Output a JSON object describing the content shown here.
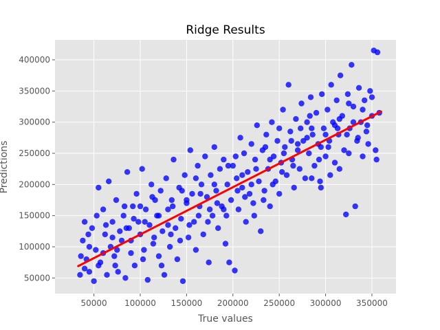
{
  "chart_data": {
    "type": "scatter",
    "title": "Ridge Results",
    "xlabel": "True values",
    "ylabel": "Predictions",
    "xlim": [
      8000,
      376000
    ],
    "ylim": [
      25000,
      432000
    ],
    "xticks": [
      50000,
      100000,
      150000,
      200000,
      250000,
      300000,
      350000
    ],
    "yticks": [
      50000,
      100000,
      150000,
      200000,
      250000,
      300000,
      350000,
      400000
    ],
    "grid": true,
    "background_color": "#e5e5e5",
    "grid_color": "#ffffff",
    "point_color": "#0000ff",
    "line_color": "#ff0000",
    "fit_line": {
      "x": [
        33000,
        360000
      ],
      "y": [
        69000,
        317000
      ]
    },
    "points": [
      [
        35000,
        55000
      ],
      [
        38000,
        110000
      ],
      [
        40000,
        140000
      ],
      [
        42000,
        80000
      ],
      [
        45000,
        60000
      ],
      [
        48000,
        130000
      ],
      [
        50000,
        45000
      ],
      [
        52000,
        95000
      ],
      [
        55000,
        195000
      ],
      [
        57000,
        75000
      ],
      [
        60000,
        160000
      ],
      [
        62000,
        120000
      ],
      [
        64000,
        55000
      ],
      [
        66000,
        205000
      ],
      [
        68000,
        100000
      ],
      [
        70000,
        140000
      ],
      [
        72000,
        85000
      ],
      [
        74000,
        175000
      ],
      [
        76000,
        60000
      ],
      [
        78000,
        125000
      ],
      [
        80000,
        110000
      ],
      [
        82000,
        150000
      ],
      [
        84000,
        50000
      ],
      [
        86000,
        220000
      ],
      [
        88000,
        130000
      ],
      [
        90000,
        90000
      ],
      [
        92000,
        165000
      ],
      [
        94000,
        70000
      ],
      [
        96000,
        185000
      ],
      [
        98000,
        140000
      ],
      [
        100000,
        120000
      ],
      [
        102000,
        225000
      ],
      [
        104000,
        95000
      ],
      [
        106000,
        160000
      ],
      [
        108000,
        47000
      ],
      [
        110000,
        135000
      ],
      [
        112000,
        200000
      ],
      [
        114000,
        105000
      ],
      [
        116000,
        175000
      ],
      [
        118000,
        150000
      ],
      [
        120000,
        85000
      ],
      [
        122000,
        190000
      ],
      [
        124000,
        125000
      ],
      [
        126000,
        55000
      ],
      [
        128000,
        210000
      ],
      [
        130000,
        160000
      ],
      [
        132000,
        100000
      ],
      [
        134000,
        175000
      ],
      [
        136000,
        240000
      ],
      [
        138000,
        130000
      ],
      [
        140000,
        80000
      ],
      [
        142000,
        195000
      ],
      [
        144000,
        145000
      ],
      [
        146000,
        45000
      ],
      [
        148000,
        215000
      ],
      [
        150000,
        170000
      ],
      [
        152000,
        115000
      ],
      [
        154000,
        255000
      ],
      [
        156000,
        185000
      ],
      [
        158000,
        140000
      ],
      [
        160000,
        95000
      ],
      [
        162000,
        230000
      ],
      [
        164000,
        165000
      ],
      [
        166000,
        200000
      ],
      [
        168000,
        120000
      ],
      [
        170000,
        245000
      ],
      [
        172000,
        180000
      ],
      [
        174000,
        75000
      ],
      [
        176000,
        215000
      ],
      [
        178000,
        150000
      ],
      [
        180000,
        260000
      ],
      [
        182000,
        190000
      ],
      [
        184000,
        130000
      ],
      [
        186000,
        225000
      ],
      [
        188000,
        165000
      ],
      [
        190000,
        240000
      ],
      [
        192000,
        105000
      ],
      [
        194000,
        200000
      ],
      [
        196000,
        75000
      ],
      [
        198000,
        175000
      ],
      [
        200000,
        230000
      ],
      [
        202000,
        62000
      ],
      [
        204000,
        210000
      ],
      [
        206000,
        160000
      ],
      [
        208000,
        275000
      ],
      [
        210000,
        195000
      ],
      [
        212000,
        250000
      ],
      [
        214000,
        140000
      ],
      [
        216000,
        220000
      ],
      [
        218000,
        185000
      ],
      [
        220000,
        265000
      ],
      [
        222000,
        170000
      ],
      [
        224000,
        240000
      ],
      [
        226000,
        295000
      ],
      [
        228000,
        205000
      ],
      [
        230000,
        125000
      ],
      [
        232000,
        255000
      ],
      [
        234000,
        190000
      ],
      [
        236000,
        280000
      ],
      [
        238000,
        225000
      ],
      [
        240000,
        165000
      ],
      [
        242000,
        300000
      ],
      [
        244000,
        245000
      ],
      [
        246000,
        205000
      ],
      [
        248000,
        270000
      ],
      [
        250000,
        185000
      ],
      [
        252000,
        235000
      ],
      [
        254000,
        320000
      ],
      [
        256000,
        260000
      ],
      [
        258000,
        215000
      ],
      [
        260000,
        360000
      ],
      [
        262000,
        285000
      ],
      [
        264000,
        240000
      ],
      [
        266000,
        195000
      ],
      [
        268000,
        305000
      ],
      [
        270000,
        255000
      ],
      [
        272000,
        225000
      ],
      [
        274000,
        330000
      ],
      [
        276000,
        270000
      ],
      [
        278000,
        210000
      ],
      [
        280000,
        300000
      ],
      [
        282000,
        250000
      ],
      [
        284000,
        340000
      ],
      [
        286000,
        280000
      ],
      [
        288000,
        230000
      ],
      [
        290000,
        315000
      ],
      [
        292000,
        265000
      ],
      [
        294000,
        205000
      ],
      [
        296000,
        345000
      ],
      [
        298000,
        290000
      ],
      [
        300000,
        245000
      ],
      [
        302000,
        320000
      ],
      [
        304000,
        270000
      ],
      [
        306000,
        360000
      ],
      [
        308000,
        300000
      ],
      [
        310000,
        235000
      ],
      [
        312000,
        335000
      ],
      [
        314000,
        280000
      ],
      [
        316000,
        375000
      ],
      [
        318000,
        310000
      ],
      [
        320000,
        255000
      ],
      [
        322000,
        152000
      ],
      [
        324000,
        345000
      ],
      [
        326000,
        290000
      ],
      [
        328000,
        392000
      ],
      [
        330000,
        325000
      ],
      [
        332000,
        165000
      ],
      [
        334000,
        270000
      ],
      [
        336000,
        355000
      ],
      [
        338000,
        300000
      ],
      [
        340000,
        245000
      ],
      [
        342000,
        335000
      ],
      [
        344000,
        285000
      ],
      [
        346000,
        265000
      ],
      [
        348000,
        350000
      ],
      [
        350000,
        310000
      ],
      [
        352000,
        415000
      ],
      [
        354000,
        255000
      ],
      [
        356000,
        412000
      ],
      [
        358000,
        315000
      ],
      [
        60000,
        90000
      ],
      [
        90000,
        110000
      ],
      [
        120000,
        150000
      ],
      [
        150000,
        175000
      ],
      [
        180000,
        200000
      ],
      [
        210000,
        215000
      ],
      [
        240000,
        240000
      ],
      [
        270000,
        265000
      ],
      [
        300000,
        280000
      ],
      [
        330000,
        300000
      ],
      [
        45000,
        100000
      ],
      [
        75000,
        95000
      ],
      [
        105000,
        140000
      ],
      [
        135000,
        165000
      ],
      [
        165000,
        185000
      ],
      [
        195000,
        230000
      ],
      [
        225000,
        225000
      ],
      [
        255000,
        250000
      ],
      [
        285000,
        290000
      ],
      [
        315000,
        305000
      ],
      [
        55000,
        70000
      ],
      [
        85000,
        130000
      ],
      [
        115000,
        115000
      ],
      [
        145000,
        190000
      ],
      [
        175000,
        160000
      ],
      [
        205000,
        190000
      ],
      [
        235000,
        260000
      ],
      [
        265000,
        230000
      ],
      [
        295000,
        260000
      ],
      [
        325000,
        330000
      ],
      [
        40000,
        65000
      ],
      [
        70000,
        115000
      ],
      [
        100000,
        165000
      ],
      [
        130000,
        135000
      ],
      [
        160000,
        210000
      ],
      [
        190000,
        160000
      ],
      [
        220000,
        200000
      ],
      [
        250000,
        290000
      ],
      [
        280000,
        275000
      ],
      [
        310000,
        295000
      ],
      [
        340000,
        320000
      ],
      [
        345000,
        295000
      ],
      [
        350000,
        340000
      ],
      [
        355000,
        240000
      ],
      [
        335000,
        275000
      ],
      [
        325000,
        250000
      ],
      [
        315000,
        225000
      ],
      [
        305000,
        215000
      ],
      [
        295000,
        195000
      ],
      [
        285000,
        210000
      ],
      [
        36000,
        85000
      ],
      [
        44000,
        120000
      ],
      [
        53000,
        150000
      ],
      [
        63000,
        135000
      ],
      [
        73000,
        70000
      ],
      [
        83000,
        165000
      ],
      [
        93000,
        145000
      ],
      [
        103000,
        80000
      ],
      [
        113000,
        180000
      ],
      [
        123000,
        70000
      ],
      [
        133000,
        120000
      ],
      [
        143000,
        110000
      ],
      [
        153000,
        135000
      ],
      [
        163000,
        150000
      ],
      [
        173000,
        140000
      ],
      [
        183000,
        170000
      ],
      [
        193000,
        150000
      ],
      [
        203000,
        245000
      ],
      [
        213000,
        180000
      ],
      [
        223000,
        150000
      ],
      [
        233000,
        175000
      ],
      [
        243000,
        200000
      ],
      [
        253000,
        220000
      ],
      [
        263000,
        270000
      ],
      [
        273000,
        290000
      ],
      [
        283000,
        310000
      ],
      [
        293000,
        240000
      ],
      [
        303000,
        260000
      ],
      [
        313000,
        290000
      ],
      [
        323000,
        280000
      ]
    ]
  }
}
